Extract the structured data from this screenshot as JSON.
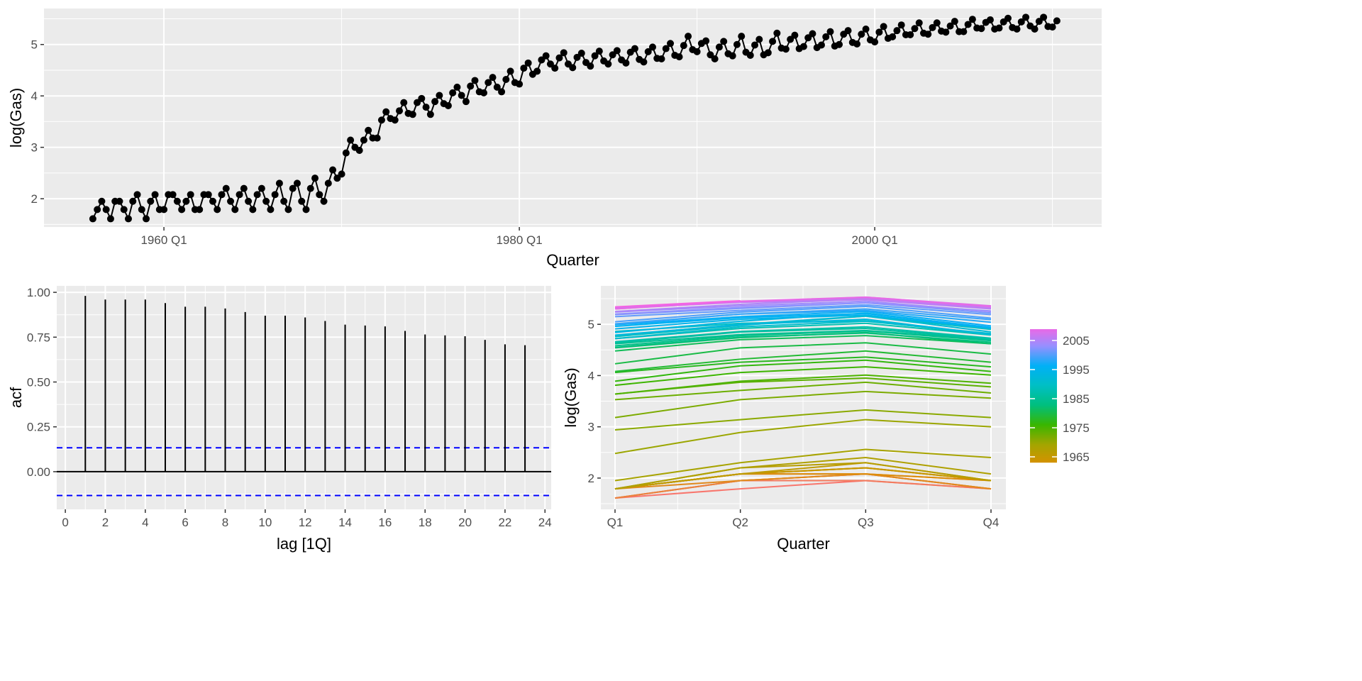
{
  "chart_data": [
    {
      "type": "line",
      "title": "",
      "xlabel": "Quarter",
      "ylabel": "log(Gas)",
      "start_year": 1956,
      "start_quarter": 1,
      "xlim": [
        1953.25,
        2012.77
      ],
      "ylim": [
        1.45,
        5.7
      ],
      "xticks": [
        {
          "value": 1960,
          "label": "1960 Q1"
        },
        {
          "value": 1980,
          "label": "1980 Q1"
        },
        {
          "value": 2000,
          "label": "2000 Q1"
        }
      ],
      "yticks": [
        2,
        3,
        4,
        5
      ],
      "grid": true,
      "markers": true,
      "values": [
        1.61,
        1.79,
        1.95,
        1.79,
        1.61,
        1.95,
        1.95,
        1.79,
        1.61,
        1.95,
        2.08,
        1.79,
        1.61,
        1.95,
        2.08,
        1.79,
        1.79,
        2.08,
        2.08,
        1.95,
        1.79,
        1.95,
        2.08,
        1.79,
        1.79,
        2.08,
        2.08,
        1.95,
        1.79,
        2.08,
        2.2,
        1.95,
        1.79,
        2.08,
        2.2,
        1.95,
        1.79,
        2.08,
        2.2,
        1.95,
        1.79,
        2.08,
        2.3,
        1.95,
        1.79,
        2.2,
        2.3,
        1.95,
        1.79,
        2.2,
        2.4,
        2.08,
        1.95,
        2.3,
        2.56,
        2.4,
        2.48,
        2.89,
        3.14,
        3.0,
        2.94,
        3.14,
        3.33,
        3.18,
        3.18,
        3.53,
        3.69,
        3.56,
        3.53,
        3.71,
        3.87,
        3.66,
        3.64,
        3.87,
        3.95,
        3.78,
        3.64,
        3.89,
        4.01,
        3.85,
        3.81,
        4.06,
        4.17,
        4.01,
        3.89,
        4.19,
        4.3,
        4.08,
        4.06,
        4.26,
        4.36,
        4.17,
        4.08,
        4.32,
        4.48,
        4.26,
        4.23,
        4.54,
        4.64,
        4.42,
        4.48,
        4.7,
        4.78,
        4.62,
        4.54,
        4.74,
        4.84,
        4.62,
        4.55,
        4.75,
        4.83,
        4.65,
        4.58,
        4.78,
        4.87,
        4.68,
        4.62,
        4.8,
        4.88,
        4.7,
        4.64,
        4.85,
        4.92,
        4.71,
        4.66,
        4.86,
        4.95,
        4.73,
        4.72,
        4.92,
        5.02,
        4.79,
        4.76,
        4.98,
        5.16,
        4.9,
        4.86,
        5.02,
        5.07,
        4.8,
        4.72,
        4.95,
        5.06,
        4.82,
        4.78,
        5.0,
        5.16,
        4.85,
        4.79,
        4.99,
        5.1,
        4.8,
        4.84,
        5.06,
        5.22,
        4.93,
        4.91,
        5.1,
        5.18,
        4.92,
        4.96,
        5.13,
        5.21,
        4.94,
        4.99,
        5.15,
        5.25,
        4.97,
        5.0,
        5.2,
        5.27,
        5.04,
        5.01,
        5.2,
        5.3,
        5.09,
        5.05,
        5.24,
        5.35,
        5.12,
        5.15,
        5.27,
        5.38,
        5.19,
        5.19,
        5.31,
        5.42,
        5.22,
        5.2,
        5.33,
        5.42,
        5.26,
        5.24,
        5.36,
        5.45,
        5.25,
        5.25,
        5.39,
        5.49,
        5.32,
        5.31,
        5.43,
        5.48,
        5.3,
        5.32,
        5.44,
        5.51,
        5.33,
        5.3,
        5.44,
        5.53,
        5.36,
        5.3,
        5.45,
        5.53,
        5.35,
        5.34,
        5.46
      ]
    },
    {
      "type": "bar",
      "subtype": "acf",
      "xlabel": "lag [1Q]",
      "ylabel": "acf",
      "xlim": [
        0,
        24
      ],
      "ylim": [
        -0.21,
        1.036
      ],
      "xticks": [
        0,
        2,
        4,
        6,
        8,
        10,
        12,
        14,
        16,
        18,
        20,
        22,
        24
      ],
      "yticks": [
        {
          "value": 0,
          "label": "0.00"
        },
        {
          "value": 0.25,
          "label": "0.25"
        },
        {
          "value": 0.5,
          "label": "0.50"
        },
        {
          "value": 0.75,
          "label": "0.75"
        },
        {
          "value": 1,
          "label": "1.00"
        }
      ],
      "lags": [
        1,
        2,
        3,
        4,
        5,
        6,
        7,
        8,
        9,
        10,
        11,
        12,
        13,
        14,
        15,
        16,
        17,
        18,
        19,
        20,
        21,
        22,
        23
      ],
      "values": [
        0.98,
        0.96,
        0.96,
        0.96,
        0.94,
        0.92,
        0.92,
        0.91,
        0.89,
        0.87,
        0.87,
        0.86,
        0.84,
        0.82,
        0.815,
        0.81,
        0.785,
        0.765,
        0.76,
        0.755,
        0.735,
        0.71,
        0.705
      ],
      "confidence_bound": 0.133,
      "confidence_color": "#0000FF"
    },
    {
      "type": "line",
      "subtype": "seasonal",
      "xlabel": "Quarter",
      "ylabel": "log(Gas)",
      "categories": [
        "Q1",
        "Q2",
        "Q3",
        "Q4"
      ],
      "ylim": [
        1.39,
        5.75
      ],
      "yticks": [
        2,
        3,
        4,
        5
      ],
      "series_source": "chart_data.0 values grouped by year",
      "legend": {
        "placement": "right",
        "labels": [
          2005,
          1995,
          1985,
          1975,
          1965
        ],
        "colors": [
          "#F8766D",
          "#D89000",
          "#A3A500",
          "#39B600",
          "#00BF7D",
          "#00BFC4",
          "#00B0F6",
          "#9590FF",
          "#F564E3"
        ],
        "range": [
          1956,
          2010
        ]
      }
    }
  ]
}
